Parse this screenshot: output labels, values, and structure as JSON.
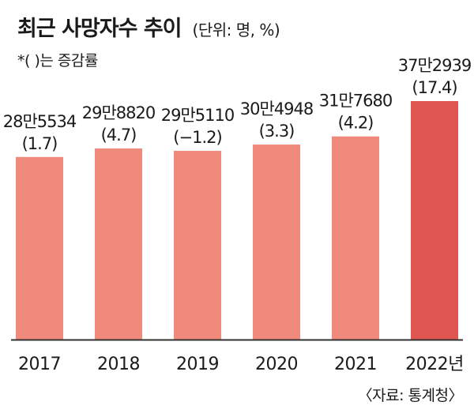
{
  "header": {
    "title": "최근 사망자수 추이",
    "unit": "(단위: 명, %)",
    "note": "*(  )는 증감률"
  },
  "source": "〈자료: 통계청〉",
  "colors": {
    "bar": "#f08a7c",
    "highlight": "#df5650",
    "axis": "#333333"
  },
  "chart_data": {
    "type": "bar",
    "title": "최근 사망자수 추이",
    "categories": [
      "2017",
      "2018",
      "2019",
      "2020",
      "2021",
      "2022년"
    ],
    "values": [
      285534,
      298820,
      295110,
      304948,
      317680,
      372939
    ],
    "value_labels": [
      "28만5534",
      "29만8820",
      "29만5110",
      "30만4948",
      "31만7680",
      "37만2939"
    ],
    "growth_rates": [
      1.7,
      4.7,
      -1.2,
      3.3,
      4.2,
      17.4
    ],
    "growth_labels": [
      "(1.7)",
      "(4.7)",
      "(−1.2)",
      "(3.3)",
      "(4.2)",
      "(17.4)"
    ],
    "highlight_index": 5,
    "ylim": [
      0,
      372939
    ],
    "grid": false,
    "legend": "none"
  }
}
